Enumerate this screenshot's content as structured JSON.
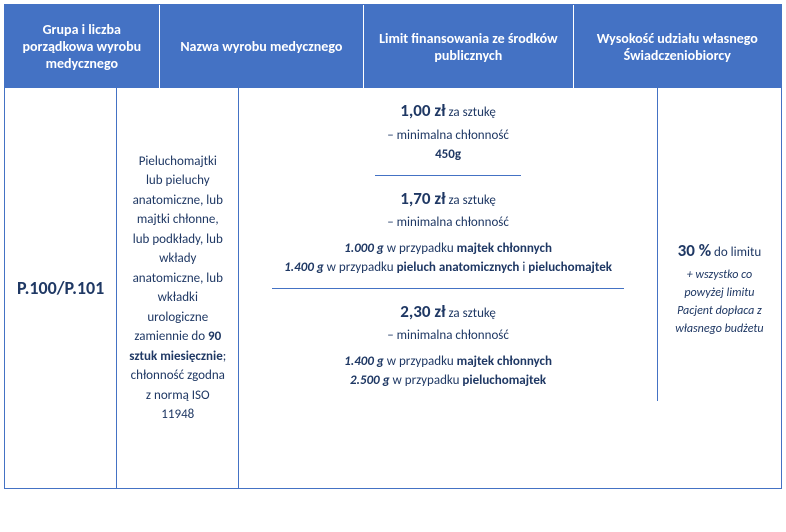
{
  "header": {
    "col1": "Grupa i liczba porządkowa wyrobu medycznego",
    "col2": "Nazwa wyrobu medycznego",
    "col3": "Limit finansowania ze środków publicznych",
    "col4": "Wysokość udziału własnego Świadczeniobiorcy"
  },
  "row": {
    "code": "P.100/P.101",
    "description_pre": "Pieluchomajtki lub pieluchy anatomiczne, lub majtki chłonne, lub podkłady, lub wkłady anatomiczne, lub wkładki urologiczne zamiennie do ",
    "description_bold": "90 sztuk miesięcznie",
    "description_post": "; chłonność zgodna z normą ISO 11948",
    "limits": {
      "l1": {
        "price": "1,00 zł",
        "per": " za sztukę",
        "min": "– minimalna chłonność",
        "weight": "450g"
      },
      "l2": {
        "price": "1,70 zł",
        "per": " za sztukę",
        "min": "– minimalna chłonność",
        "w1": "1.000 g",
        "t1": " w przypadku ",
        "p1": "majtek chłonnych",
        "w2": "1.400 g",
        "t2": " w przypadku ",
        "p2a": "pieluch anatomicznych",
        "and": " i ",
        "p2b": "pieluchomajtek"
      },
      "l3": {
        "price": "2,30 zł",
        "per": " za sztukę",
        "min": "– minimalna chłonność",
        "w1": "1.400 g",
        "t1": " w przypadku ",
        "p1": "majtek chłonnych",
        "w2": "2.500 g",
        "t2": " w przypadku ",
        "p2": "pieluchomajtek"
      }
    },
    "share": {
      "percent": "30 %",
      "percent_post": " do limitu",
      "note": "+ wszystko co powyżej limitu Pacjent dopłaca z własnego budżetu"
    }
  },
  "colors": {
    "header_bg": "#4472c4",
    "header_text": "#ffffff",
    "border": "#4472c4",
    "body_text": "#1f3864"
  }
}
